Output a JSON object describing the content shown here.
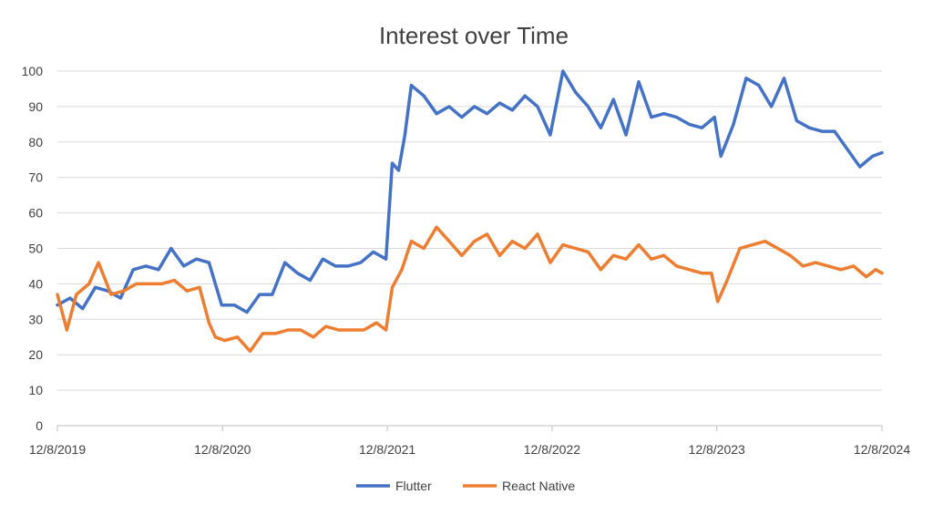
{
  "chart_data": {
    "type": "line",
    "title": "Interest over Time",
    "xlabel": "",
    "ylabel": "",
    "ylim": [
      0,
      100
    ],
    "y_ticks": [
      0,
      10,
      20,
      30,
      40,
      50,
      60,
      70,
      80,
      90,
      100
    ],
    "x_ticks": [
      "12/8/2019",
      "12/8/2020",
      "12/8/2021",
      "12/8/2022",
      "12/8/2023",
      "12/8/2024"
    ],
    "x_range": [
      "12/8/2019",
      "12/8/2024"
    ],
    "grid": true,
    "legend_position": "bottom",
    "series": [
      {
        "name": "Flutter",
        "color": "#4472C4",
        "points": [
          [
            "12/8/2019",
            34
          ],
          [
            "1/5/2020",
            36
          ],
          [
            "2/2/2020",
            33
          ],
          [
            "3/1/2020",
            39
          ],
          [
            "3/29/2020",
            38
          ],
          [
            "4/26/2020",
            36
          ],
          [
            "5/24/2020",
            44
          ],
          [
            "6/21/2020",
            45
          ],
          [
            "7/19/2020",
            44
          ],
          [
            "8/16/2020",
            50
          ],
          [
            "9/13/2020",
            45
          ],
          [
            "10/11/2020",
            47
          ],
          [
            "11/8/2020",
            46
          ],
          [
            "12/6/2020",
            34
          ],
          [
            "1/3/2021",
            34
          ],
          [
            "1/31/2021",
            32
          ],
          [
            "2/28/2021",
            37
          ],
          [
            "3/28/2021",
            37
          ],
          [
            "4/25/2021",
            46
          ],
          [
            "5/23/2021",
            43
          ],
          [
            "6/20/2021",
            41
          ],
          [
            "7/18/2021",
            47
          ],
          [
            "8/15/2021",
            45
          ],
          [
            "9/12/2021",
            45
          ],
          [
            "10/10/2021",
            46
          ],
          [
            "11/7/2021",
            49
          ],
          [
            "12/5/2021",
            47
          ],
          [
            "12/19/2021",
            74
          ],
          [
            "1/2/2022",
            72
          ],
          [
            "1/16/2022",
            82
          ],
          [
            "1/30/2022",
            96
          ],
          [
            "2/27/2022",
            93
          ],
          [
            "3/27/2022",
            88
          ],
          [
            "4/24/2022",
            90
          ],
          [
            "5/22/2022",
            87
          ],
          [
            "6/19/2022",
            90
          ],
          [
            "7/17/2022",
            88
          ],
          [
            "8/14/2022",
            91
          ],
          [
            "9/11/2022",
            89
          ],
          [
            "10/9/2022",
            93
          ],
          [
            "11/6/2022",
            90
          ],
          [
            "12/4/2022",
            82
          ],
          [
            "1/1/2023",
            100
          ],
          [
            "1/29/2023",
            94
          ],
          [
            "2/26/2023",
            90
          ],
          [
            "3/26/2023",
            84
          ],
          [
            "4/23/2023",
            92
          ],
          [
            "5/21/2023",
            82
          ],
          [
            "6/18/2023",
            97
          ],
          [
            "7/16/2023",
            87
          ],
          [
            "8/13/2023",
            88
          ],
          [
            "9/10/2023",
            87
          ],
          [
            "10/8/2023",
            85
          ],
          [
            "11/5/2023",
            84
          ],
          [
            "12/3/2023",
            87
          ],
          [
            "12/17/2023",
            76
          ],
          [
            "1/14/2024",
            85
          ],
          [
            "2/11/2024",
            98
          ],
          [
            "3/10/2024",
            96
          ],
          [
            "4/7/2024",
            90
          ],
          [
            "5/5/2024",
            98
          ],
          [
            "6/2/2024",
            86
          ],
          [
            "6/30/2024",
            84
          ],
          [
            "7/28/2024",
            83
          ],
          [
            "8/25/2024",
            83
          ],
          [
            "9/22/2024",
            78
          ],
          [
            "10/20/2024",
            73
          ],
          [
            "11/17/2024",
            76
          ],
          [
            "12/8/2024",
            77
          ]
        ]
      },
      {
        "name": "React Native",
        "color": "#ED7D31",
        "points": [
          [
            "12/8/2019",
            37
          ],
          [
            "12/29/2019",
            27
          ],
          [
            "1/19/2020",
            37
          ],
          [
            "2/16/2020",
            40
          ],
          [
            "3/8/2020",
            46
          ],
          [
            "4/5/2020",
            37
          ],
          [
            "5/3/2020",
            38
          ],
          [
            "5/31/2020",
            40
          ],
          [
            "6/28/2020",
            40
          ],
          [
            "7/26/2020",
            40
          ],
          [
            "8/23/2020",
            41
          ],
          [
            "9/20/2020",
            38
          ],
          [
            "10/18/2020",
            39
          ],
          [
            "11/8/2020",
            29
          ],
          [
            "11/22/2020",
            25
          ],
          [
            "12/13/2020",
            24
          ],
          [
            "1/10/2021",
            25
          ],
          [
            "2/7/2021",
            21
          ],
          [
            "3/7/2021",
            26
          ],
          [
            "4/4/2021",
            26
          ],
          [
            "5/2/2021",
            27
          ],
          [
            "5/30/2021",
            27
          ],
          [
            "6/27/2021",
            25
          ],
          [
            "7/25/2021",
            28
          ],
          [
            "8/22/2021",
            27
          ],
          [
            "9/19/2021",
            27
          ],
          [
            "10/17/2021",
            27
          ],
          [
            "11/14/2021",
            29
          ],
          [
            "12/5/2021",
            27
          ],
          [
            "12/19/2021",
            39
          ],
          [
            "1/9/2022",
            44
          ],
          [
            "1/30/2022",
            52
          ],
          [
            "2/27/2022",
            50
          ],
          [
            "3/27/2022",
            56
          ],
          [
            "4/24/2022",
            52
          ],
          [
            "5/22/2022",
            48
          ],
          [
            "6/19/2022",
            52
          ],
          [
            "7/17/2022",
            54
          ],
          [
            "8/14/2022",
            48
          ],
          [
            "9/11/2022",
            52
          ],
          [
            "10/9/2022",
            50
          ],
          [
            "11/6/2022",
            54
          ],
          [
            "12/4/2022",
            46
          ],
          [
            "1/1/2023",
            51
          ],
          [
            "1/29/2023",
            50
          ],
          [
            "2/26/2023",
            49
          ],
          [
            "3/26/2023",
            44
          ],
          [
            "4/23/2023",
            48
          ],
          [
            "5/21/2023",
            47
          ],
          [
            "6/18/2023",
            51
          ],
          [
            "7/16/2023",
            47
          ],
          [
            "8/13/2023",
            48
          ],
          [
            "9/10/2023",
            45
          ],
          [
            "10/8/2023",
            44
          ],
          [
            "11/5/2023",
            43
          ],
          [
            "11/26/2023",
            43
          ],
          [
            "12/10/2023",
            35
          ],
          [
            "12/31/2023",
            41
          ],
          [
            "1/28/2024",
            50
          ],
          [
            "2/25/2024",
            51
          ],
          [
            "3/24/2024",
            52
          ],
          [
            "4/21/2024",
            50
          ],
          [
            "5/19/2024",
            48
          ],
          [
            "6/16/2024",
            45
          ],
          [
            "7/14/2024",
            46
          ],
          [
            "8/11/2024",
            45
          ],
          [
            "9/8/2024",
            44
          ],
          [
            "10/6/2024",
            45
          ],
          [
            "11/3/2024",
            42
          ],
          [
            "11/24/2024",
            44
          ],
          [
            "12/8/2024",
            43
          ]
        ]
      }
    ]
  }
}
